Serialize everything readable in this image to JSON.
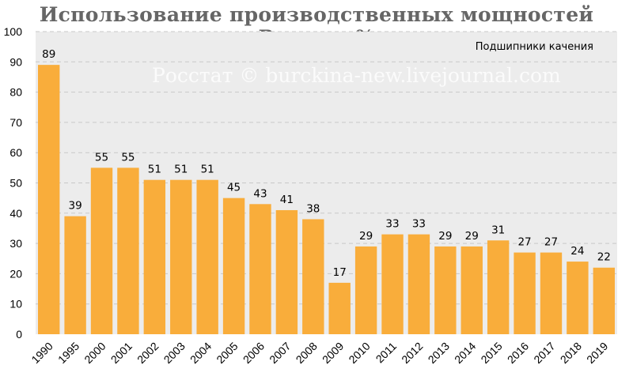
{
  "title": "Использование производственных мощностей России, %",
  "watermark": "Росстат © burckina-new.livejournal.com",
  "chart_data": {
    "type": "bar",
    "categories": [
      "1990",
      "1995",
      "2000",
      "2001",
      "2002",
      "2003",
      "2004",
      "2005",
      "2006",
      "2007",
      "2008",
      "2009",
      "2010",
      "2011",
      "2012",
      "2013",
      "2014",
      "2015",
      "2016",
      "2017",
      "2018",
      "2019"
    ],
    "series": [
      {
        "name": "Подшипники качения",
        "values": [
          89,
          39,
          55,
          55,
          51,
          51,
          51,
          45,
          43,
          41,
          38,
          17,
          29,
          33,
          33,
          29,
          29,
          31,
          27,
          27,
          24,
          22
        ]
      }
    ],
    "ylim": [
      0,
      100
    ],
    "yticks": [
      0,
      10,
      20,
      30,
      40,
      50,
      60,
      70,
      80,
      90,
      100
    ],
    "grid": true,
    "legend_position": "top-right",
    "bar_color": "#f9ad3b",
    "plot_background": "#ececec",
    "grid_color": "#c8c8c8"
  }
}
